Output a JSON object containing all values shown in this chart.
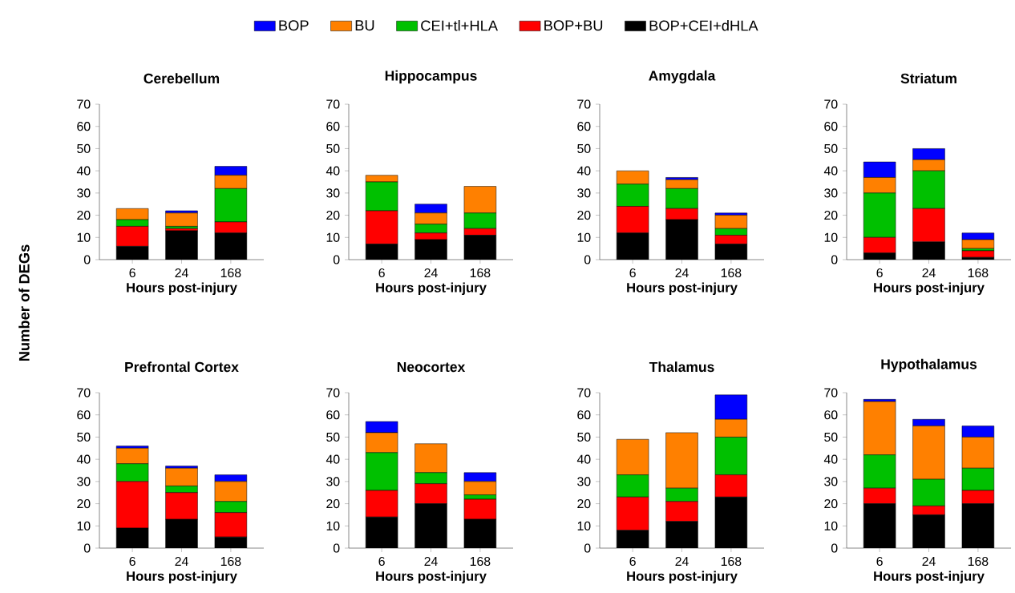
{
  "chart_data": [
    {
      "type": "bar",
      "stacked": true,
      "title": "Cerebellum",
      "xlabel": "Hours post-injury",
      "ylabel": "Number of DEGs",
      "legend": "top",
      "categories": [
        "6",
        "24",
        "168"
      ],
      "ylim": [
        0,
        70
      ],
      "yticks": [
        0,
        10,
        20,
        30,
        40,
        50,
        60,
        70
      ],
      "series": [
        {
          "name": "BOP+CEI+dHLA",
          "color": "#000000",
          "values": [
            6,
            13,
            12
          ]
        },
        {
          "name": "BOP+BU",
          "color": "#ff0000",
          "values": [
            9,
            1,
            5
          ]
        },
        {
          "name": "CEI+tl+HLA",
          "color": "#00c000",
          "values": [
            3,
            1,
            15
          ]
        },
        {
          "name": "BU",
          "color": "#ff8000",
          "values": [
            5,
            6,
            6
          ]
        },
        {
          "name": "BOP",
          "color": "#0000ff",
          "values": [
            0,
            1,
            4
          ]
        }
      ]
    },
    {
      "type": "bar",
      "stacked": true,
      "title": "Hippocampus",
      "xlabel": "Hours post-injury",
      "categories": [
        "6",
        "24",
        "168"
      ],
      "ylim": [
        0,
        70
      ],
      "yticks": [
        0,
        10,
        20,
        30,
        40,
        50,
        60,
        70
      ],
      "series": [
        {
          "color": "#000000",
          "values": [
            7,
            9,
            11
          ]
        },
        {
          "color": "#ff0000",
          "values": [
            15,
            3,
            3
          ]
        },
        {
          "color": "#00c000",
          "values": [
            13,
            4,
            7
          ]
        },
        {
          "color": "#ff8000",
          "values": [
            3,
            5,
            12
          ]
        },
        {
          "color": "#0000ff",
          "values": [
            0,
            4,
            0
          ]
        }
      ]
    },
    {
      "type": "bar",
      "stacked": true,
      "title": "Amygdala",
      "xlabel": "Hours post-injury",
      "categories": [
        "6",
        "24",
        "168"
      ],
      "ylim": [
        0,
        70
      ],
      "yticks": [
        0,
        10,
        20,
        30,
        40,
        50,
        60,
        70
      ],
      "series": [
        {
          "color": "#000000",
          "values": [
            12,
            18,
            7
          ]
        },
        {
          "color": "#ff0000",
          "values": [
            12,
            5,
            4
          ]
        },
        {
          "color": "#00c000",
          "values": [
            10,
            9,
            3
          ]
        },
        {
          "color": "#ff8000",
          "values": [
            6,
            4,
            6
          ]
        },
        {
          "color": "#0000ff",
          "values": [
            0,
            1,
            1
          ]
        }
      ]
    },
    {
      "type": "bar",
      "stacked": true,
      "title": "Striatum",
      "xlabel": "Hours post-injury",
      "categories": [
        "6",
        "24",
        "168"
      ],
      "ylim": [
        0,
        70
      ],
      "yticks": [
        0,
        10,
        20,
        30,
        40,
        50,
        60,
        70
      ],
      "series": [
        {
          "color": "#000000",
          "values": [
            3,
            8,
            1
          ]
        },
        {
          "color": "#ff0000",
          "values": [
            7,
            15,
            3
          ]
        },
        {
          "color": "#00c000",
          "values": [
            20,
            17,
            1
          ]
        },
        {
          "color": "#ff8000",
          "values": [
            7,
            5,
            4
          ]
        },
        {
          "color": "#0000ff",
          "values": [
            7,
            5,
            3
          ]
        }
      ]
    },
    {
      "type": "bar",
      "stacked": true,
      "title": "Prefrontal  Cortex",
      "xlabel": "Hours post-injury",
      "categories": [
        "6",
        "24",
        "168"
      ],
      "ylim": [
        0,
        70
      ],
      "yticks": [
        0,
        10,
        20,
        30,
        40,
        50,
        60,
        70
      ],
      "series": [
        {
          "color": "#000000",
          "values": [
            9,
            13,
            5
          ]
        },
        {
          "color": "#ff0000",
          "values": [
            21,
            12,
            11
          ]
        },
        {
          "color": "#00c000",
          "values": [
            8,
            3,
            5
          ]
        },
        {
          "color": "#ff8000",
          "values": [
            7,
            8,
            9
          ]
        },
        {
          "color": "#0000ff",
          "values": [
            1,
            1,
            3
          ]
        }
      ]
    },
    {
      "type": "bar",
      "stacked": true,
      "title": "Neocortex",
      "xlabel": "Hours post-injury",
      "categories": [
        "6",
        "24",
        "168"
      ],
      "ylim": [
        0,
        70
      ],
      "yticks": [
        0,
        10,
        20,
        30,
        40,
        50,
        60,
        70
      ],
      "series": [
        {
          "color": "#000000",
          "values": [
            14,
            20,
            13
          ]
        },
        {
          "color": "#ff0000",
          "values": [
            12,
            9,
            9
          ]
        },
        {
          "color": "#00c000",
          "values": [
            17,
            5,
            2
          ]
        },
        {
          "color": "#ff8000",
          "values": [
            9,
            13,
            6
          ]
        },
        {
          "color": "#0000ff",
          "values": [
            5,
            0,
            4
          ]
        }
      ]
    },
    {
      "type": "bar",
      "stacked": true,
      "title": "Thalamus",
      "xlabel": "Hours post-injury",
      "categories": [
        "6",
        "24",
        "168"
      ],
      "ylim": [
        0,
        70
      ],
      "yticks": [
        0,
        10,
        20,
        30,
        40,
        50,
        60,
        70
      ],
      "series": [
        {
          "color": "#000000",
          "values": [
            8,
            12,
            23
          ]
        },
        {
          "color": "#ff0000",
          "values": [
            15,
            9,
            10
          ]
        },
        {
          "color": "#00c000",
          "values": [
            10,
            6,
            17
          ]
        },
        {
          "color": "#ff8000",
          "values": [
            16,
            25,
            8
          ]
        },
        {
          "color": "#0000ff",
          "values": [
            0,
            0,
            11
          ]
        }
      ]
    },
    {
      "type": "bar",
      "stacked": true,
      "title": "Hypothalamus",
      "xlabel": "Hours post-injury",
      "categories": [
        "6",
        "24",
        "168"
      ],
      "ylim": [
        0,
        70
      ],
      "yticks": [
        0,
        10,
        20,
        30,
        40,
        50,
        60,
        70
      ],
      "series": [
        {
          "color": "#000000",
          "values": [
            20,
            15,
            20
          ]
        },
        {
          "color": "#ff0000",
          "values": [
            7,
            4,
            6
          ]
        },
        {
          "color": "#00c000",
          "values": [
            15,
            12,
            10
          ]
        },
        {
          "color": "#ff8000",
          "values": [
            24,
            24,
            14
          ]
        },
        {
          "color": "#0000ff",
          "values": [
            1,
            3,
            5
          ]
        }
      ]
    }
  ]
}
